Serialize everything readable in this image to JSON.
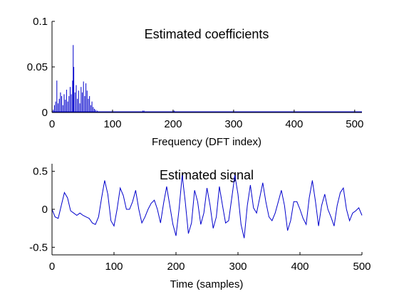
{
  "colors": {
    "line": "#0000cc",
    "axis": "#000000",
    "background": "#ffffff"
  },
  "chart_data": [
    {
      "type": "bar",
      "title": "Estimated coefficients",
      "xlabel": "Frequency (DFT index)",
      "ylabel": "",
      "xlim": [
        0,
        512
      ],
      "ylim": [
        0,
        0.1
      ],
      "xticks": [
        0,
        100,
        200,
        300,
        400,
        500
      ],
      "yticks": [
        0,
        0.05,
        0.1
      ],
      "xtick_labels": [
        "0",
        "100",
        "200",
        "300",
        "400",
        "500"
      ],
      "ytick_labels": [
        "0",
        "0.05",
        "0.1"
      ],
      "grid": false,
      "x": [
        2,
        4,
        6,
        8,
        10,
        12,
        14,
        16,
        18,
        20,
        22,
        24,
        26,
        28,
        30,
        32,
        34,
        35,
        36,
        38,
        40,
        42,
        44,
        46,
        48,
        50,
        52,
        54,
        56,
        58,
        60,
        62,
        64,
        66,
        68,
        70,
        72,
        75,
        80,
        90,
        110,
        130,
        150,
        152,
        170,
        200,
        202,
        240,
        260,
        300,
        340,
        400,
        450,
        500
      ],
      "values": [
        0.003,
        0.008,
        0.012,
        0.035,
        0.01,
        0.015,
        0.022,
        0.018,
        0.008,
        0.02,
        0.014,
        0.025,
        0.012,
        0.018,
        0.028,
        0.02,
        0.035,
        0.074,
        0.05,
        0.022,
        0.03,
        0.015,
        0.024,
        0.01,
        0.028,
        0.022,
        0.034,
        0.018,
        0.032,
        0.024,
        0.015,
        0.018,
        0.008,
        0.012,
        0.006,
        0.004,
        0.003,
        0.002,
        0.001,
        0.001,
        0.001,
        0.001,
        0.002,
        0.002,
        0.001,
        0.002,
        0.002,
        0.001,
        0.001,
        0.001,
        0.001,
        0.001,
        0.001,
        0.001
      ]
    },
    {
      "type": "line",
      "title": "Estimated signal",
      "xlabel": "Time (samples)",
      "ylabel": "",
      "xlim": [
        0,
        500
      ],
      "ylim": [
        -0.6,
        0.6
      ],
      "xticks": [
        0,
        100,
        200,
        300,
        400,
        500
      ],
      "yticks": [
        -0.5,
        0,
        0.5
      ],
      "xtick_labels": [
        "0",
        "100",
        "200",
        "300",
        "400",
        "500"
      ],
      "ytick_labels": [
        "-0.5",
        "0",
        "0.5"
      ],
      "grid": false,
      "x": [
        0,
        5,
        10,
        15,
        20,
        25,
        30,
        35,
        40,
        45,
        50,
        55,
        60,
        65,
        70,
        75,
        80,
        85,
        90,
        95,
        100,
        105,
        110,
        115,
        120,
        125,
        130,
        135,
        140,
        145,
        150,
        155,
        160,
        165,
        170,
        175,
        180,
        185,
        190,
        195,
        200,
        205,
        210,
        215,
        220,
        225,
        230,
        235,
        240,
        245,
        250,
        255,
        260,
        265,
        270,
        275,
        280,
        285,
        290,
        295,
        300,
        305,
        310,
        315,
        320,
        325,
        330,
        335,
        340,
        345,
        350,
        355,
        360,
        365,
        370,
        375,
        380,
        385,
        390,
        395,
        400,
        405,
        410,
        415,
        420,
        425,
        430,
        435,
        440,
        445,
        450,
        455,
        460,
        465,
        470,
        475,
        480,
        485,
        490,
        495,
        500
      ],
      "values": [
        0.0,
        -0.1,
        -0.12,
        0.05,
        0.22,
        0.15,
        -0.02,
        -0.05,
        -0.08,
        -0.05,
        -0.08,
        -0.1,
        -0.12,
        -0.18,
        -0.2,
        -0.1,
        0.15,
        0.38,
        0.2,
        -0.15,
        -0.22,
        0.0,
        0.28,
        0.18,
        0.0,
        0.0,
        0.1,
        0.25,
        0.0,
        -0.18,
        -0.1,
        0.0,
        0.08,
        0.12,
        0.0,
        -0.18,
        0.08,
        0.3,
        0.05,
        -0.2,
        -0.35,
        0.0,
        0.45,
        0.1,
        -0.32,
        -0.18,
        0.25,
        0.1,
        -0.2,
        -0.05,
        0.28,
        0.05,
        -0.25,
        -0.1,
        0.3,
        0.05,
        -0.18,
        -0.15,
        0.15,
        0.45,
        0.2,
        -0.2,
        -0.38,
        0.05,
        0.32,
        0.02,
        -0.05,
        0.15,
        0.35,
        0.1,
        -0.1,
        -0.15,
        -0.05,
        0.1,
        0.25,
        0.05,
        -0.28,
        -0.15,
        0.1,
        0.1,
        0.0,
        -0.12,
        -0.2,
        0.15,
        0.38,
        0.1,
        -0.22,
        0.05,
        0.2,
        0.0,
        -0.1,
        -0.22,
        0.05,
        0.22,
        0.28,
        0.0,
        -0.15,
        -0.05,
        -0.02,
        0.02,
        -0.08
      ]
    }
  ]
}
